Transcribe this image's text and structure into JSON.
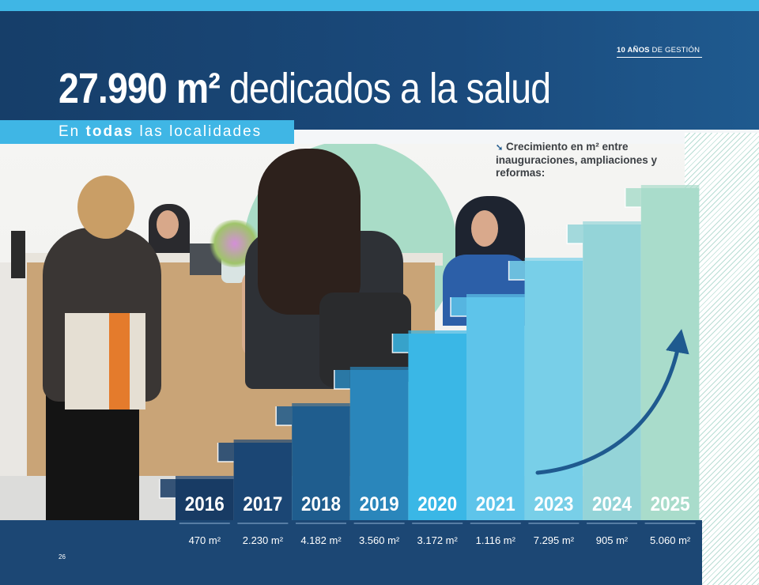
{
  "header": {
    "kicker_bold": "10 AÑOS",
    "kicker_rest": "DE GESTIÓN",
    "headline_bold": "27.990 m²",
    "headline_light": "dedicados a la salud",
    "subhead_pre": "En ",
    "subhead_bold": "todas",
    "subhead_post": " las localidades"
  },
  "callout": {
    "arrow": "➘",
    "text": "Crecimiento en m² entre inauguraciones, ampliaciones y reformas:"
  },
  "page_number": "26",
  "colors": {
    "navy": "#1c4774",
    "accent_blue": "#3fb6e5",
    "mint": "#a9dcc7"
  },
  "chart_data": {
    "type": "bar",
    "title": "",
    "xlabel": "",
    "ylabel": "",
    "categories": [
      "2016",
      "2017",
      "2018",
      "2019",
      "2020",
      "2021",
      "2023",
      "2024",
      "2025"
    ],
    "values": [
      470,
      2230,
      4182,
      3560,
      3172,
      1116,
      7295,
      905,
      5060
    ],
    "value_labels": [
      "470 m²",
      "2.230 m²",
      "4.182 m²",
      "3.560 m²",
      "3.172 m²",
      "1.116 m²",
      "7.295 m²",
      "905 m²",
      "5.060 m²"
    ],
    "unit": "m²",
    "total_label": "27.990 m²",
    "style": "staircase",
    "bar_colors": [
      "#183b64",
      "#1b4674",
      "#1f5d8e",
      "#2a86bb",
      "#3ab7e6",
      "#5ec4ea",
      "#78cfe8",
      "#94d4d8",
      "#a9dccb"
    ],
    "growth_arrow_color": "#1f5a8f"
  }
}
